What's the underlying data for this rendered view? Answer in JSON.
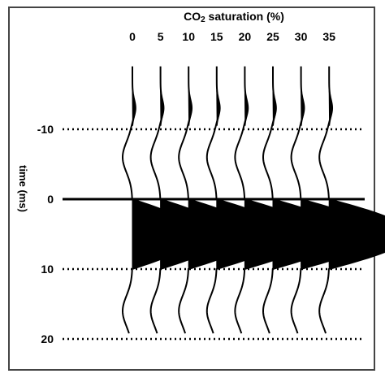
{
  "chart_data": {
    "type": "line",
    "title": "CO2 saturation (%)",
    "title_main": "CO",
    "title_sub": "2",
    "title_rest": " saturation (%)",
    "ylabel": "time (ms)",
    "categories": [
      "0",
      "5",
      "10",
      "15",
      "20",
      "25",
      "30",
      "35"
    ],
    "co2_saturation_pct": [
      0,
      5,
      10,
      15,
      20,
      25,
      30,
      35
    ],
    "y_ticks": [
      -10,
      0,
      10,
      20
    ],
    "y_tick_labels": [
      "-10",
      "0",
      "10",
      "20"
    ],
    "ylim": [
      -18,
      20
    ],
    "reference_lines": [
      {
        "time_ms": -10,
        "style": "dotted"
      },
      {
        "time_ms": 0,
        "style": "solid"
      },
      {
        "time_ms": 10,
        "style": "dotted"
      },
      {
        "time_ms": 20,
        "style": "dotted"
      }
    ],
    "peak_amplitude": [
      1.0,
      1.03,
      1.06,
      1.09,
      1.12,
      1.15,
      1.19,
      1.22
    ],
    "wavelet_fill": "positive lobe filled black",
    "grid": false
  }
}
